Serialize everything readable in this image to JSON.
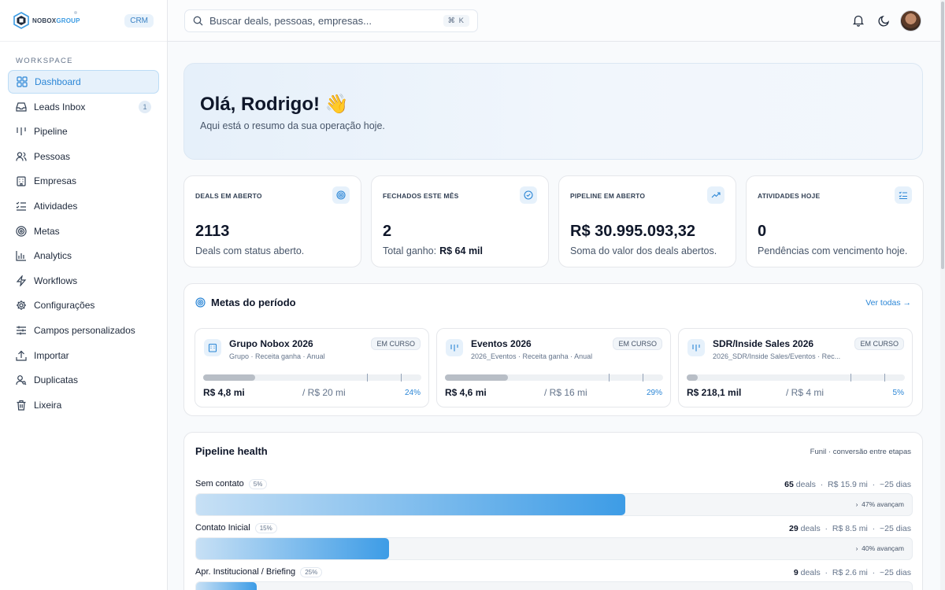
{
  "brand": {
    "name_part1": "NOBOX",
    "name_part2": "GROUP",
    "badge": "CRM"
  },
  "sidebar": {
    "section_label": "WORKSPACE",
    "items": [
      {
        "label": "Dashboard",
        "icon": "grid-icon",
        "active": true
      },
      {
        "label": "Leads Inbox",
        "icon": "inbox-icon",
        "badge": "1"
      },
      {
        "label": "Pipeline",
        "icon": "pipeline-icon"
      },
      {
        "label": "Pessoas",
        "icon": "users-icon"
      },
      {
        "label": "Empresas",
        "icon": "building-icon"
      },
      {
        "label": "Atividades",
        "icon": "checklist-icon"
      },
      {
        "label": "Metas",
        "icon": "target-icon"
      },
      {
        "label": "Analytics",
        "icon": "bar-chart-icon"
      },
      {
        "label": "Workflows",
        "icon": "bolt-icon"
      },
      {
        "label": "Configurações",
        "icon": "gear-icon"
      },
      {
        "label": "Campos personalizados",
        "icon": "sliders-icon"
      },
      {
        "label": "Importar",
        "icon": "upload-icon"
      },
      {
        "label": "Duplicatas",
        "icon": "user-search-icon"
      },
      {
        "label": "Lixeira",
        "icon": "trash-icon"
      }
    ]
  },
  "topbar": {
    "search_placeholder": "Buscar deals, pessoas, empresas...",
    "shortcut": "⌘ K"
  },
  "hero": {
    "title": "Olá, Rodrigo! 👋",
    "subtitle": "Aqui está o resumo da sua operação hoje."
  },
  "kpis": [
    {
      "label": "DEALS EM ABERTO",
      "value": "2113",
      "sub": "Deals com status aberto.",
      "icon": "target-icon"
    },
    {
      "label": "FECHADOS ESTE MÊS",
      "value": "2",
      "sub": "Total ganho:",
      "sub_strong": "R$ 64 mil",
      "icon": "check-circle-icon"
    },
    {
      "label": "PIPELINE EM ABERTO",
      "value": "R$ 30.995.093,32",
      "sub": "Soma do valor dos deals abertos.",
      "icon": "trend-up-icon"
    },
    {
      "label": "ATIVIDADES HOJE",
      "value": "0",
      "sub": "Pendências com vencimento hoje.",
      "icon": "list-check-icon"
    }
  ],
  "goals": {
    "title": "Metas do período",
    "link": "Ver todas →",
    "items": [
      {
        "name": "Grupo Nobox 2026",
        "meta": "Grupo · Receita ganha · Anual",
        "status": "EM CURSO",
        "value": "R$ 4,8 mi",
        "target": "/ R$ 20 mi",
        "pct": "24%",
        "progress": 0.24,
        "icon": "building-icon"
      },
      {
        "name": "Eventos 2026",
        "meta": "2026_Eventos · Receita ganha · Anual",
        "status": "EM CURSO",
        "value": "R$ 4,6 mi",
        "target": "/ R$ 16 mi",
        "pct": "29%",
        "progress": 0.29,
        "icon": "pipeline-icon"
      },
      {
        "name": "SDR/Inside Sales 2026",
        "meta": "2026_SDR/Inside Sales/Eventos · Rec...",
        "status": "EM CURSO",
        "value": "R$ 218,1 mil",
        "target": "/ R$ 4 mi",
        "pct": "5%",
        "progress": 0.05,
        "icon": "pipeline-icon"
      }
    ]
  },
  "pipeline": {
    "title": "Pipeline health",
    "caption": "Funil · conversão entre etapas",
    "stages": [
      {
        "name": "Sem contato",
        "pct": "5%",
        "deals": "65",
        "deals_word": "deals",
        "value": "R$ 15.9 mi",
        "days": "~25 dias",
        "advance": "47% avançam",
        "share": 0.6
      },
      {
        "name": "Contato Inicial",
        "pct": "15%",
        "deals": "29",
        "deals_word": "deals",
        "value": "R$ 8.5 mi",
        "days": "~25 dias",
        "advance": "40% avançam",
        "share": 0.27
      },
      {
        "name": "Apr. Institucional / Briefing",
        "pct": "25%",
        "deals": "9",
        "deals_word": "deals",
        "value": "R$ 2.6 mi",
        "days": "~25 dias",
        "advance": "",
        "share": 0.085
      }
    ]
  }
}
